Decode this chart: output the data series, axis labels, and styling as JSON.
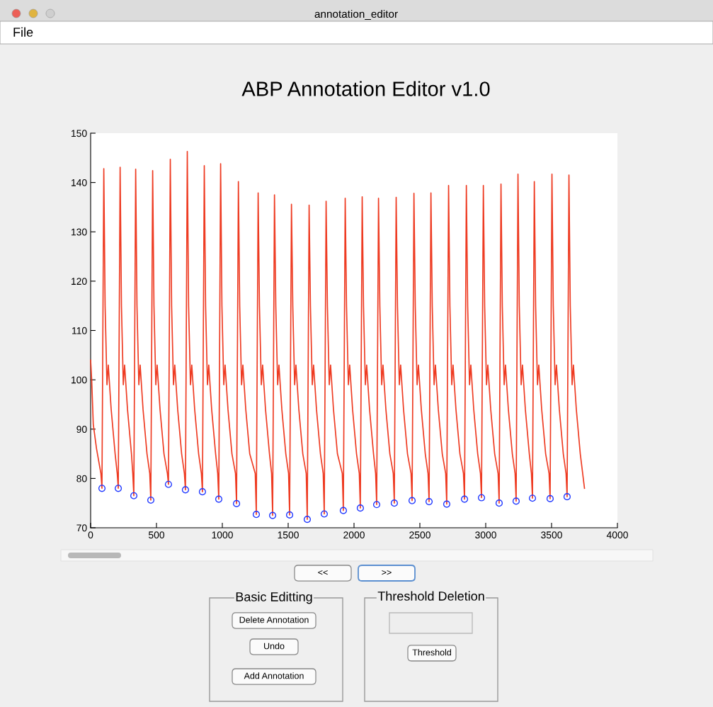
{
  "chart_data": {
    "type": "line",
    "title": "ABP Annotation Editor v1.0",
    "xlim": [
      0,
      4000
    ],
    "xticks": [
      0,
      500,
      1000,
      1500,
      2000,
      2500,
      3000,
      3500,
      4000
    ],
    "ylim": [
      70,
      150
    ],
    "yticks": [
      70,
      80,
      90,
      100,
      110,
      120,
      130,
      140,
      150
    ],
    "series": [
      {
        "color": "#ee3b22",
        "x": [
          0,
          8,
          20,
          45,
          78,
          86,
          100,
          110,
          124,
          134,
          156,
          186,
          202,
          210,
          224,
          234,
          248,
          258,
          280,
          310,
          320,
          328,
          342,
          352,
          366,
          376,
          398,
          428,
          449,
          457,
          471,
          481,
          495,
          505,
          527,
          557,
          583,
          591,
          605,
          615,
          629,
          639,
          661,
          691,
          712,
          720,
          734,
          744,
          758,
          768,
          790,
          820,
          841,
          849,
          863,
          873,
          887,
          897,
          919,
          949,
          965,
          973,
          987,
          997,
          1011,
          1021,
          1043,
          1073,
          1100,
          1108,
          1122,
          1132,
          1146,
          1156,
          1178,
          1208,
          1250,
          1258,
          1272,
          1282,
          1296,
          1306,
          1328,
          1358,
          1374,
          1382,
          1396,
          1406,
          1420,
          1430,
          1452,
          1482,
          1503,
          1511,
          1525,
          1535,
          1549,
          1559,
          1581,
          1611,
          1637,
          1645,
          1659,
          1669,
          1683,
          1693,
          1715,
          1745,
          1766,
          1774,
          1788,
          1798,
          1812,
          1822,
          1844,
          1874,
          1911,
          1919,
          1933,
          1943,
          1957,
          1967,
          1989,
          2019,
          2040,
          2048,
          2062,
          2072,
          2086,
          2096,
          2118,
          2148,
          2164,
          2172,
          2186,
          2196,
          2210,
          2220,
          2242,
          2272,
          2298,
          2306,
          2320,
          2330,
          2344,
          2354,
          2376,
          2406,
          2433,
          2441,
          2455,
          2465,
          2479,
          2489,
          2511,
          2541,
          2562,
          2570,
          2584,
          2594,
          2608,
          2618,
          2640,
          2670,
          2696,
          2704,
          2718,
          2728,
          2742,
          2752,
          2774,
          2804,
          2831,
          2839,
          2853,
          2863,
          2877,
          2887,
          2909,
          2939,
          2960,
          2968,
          2982,
          2992,
          3006,
          3016,
          3038,
          3068,
          3094,
          3102,
          3116,
          3126,
          3140,
          3150,
          3172,
          3202,
          3223,
          3231,
          3245,
          3255,
          3269,
          3279,
          3301,
          3331,
          3347,
          3355,
          3369,
          3379,
          3393,
          3403,
          3425,
          3455,
          3481,
          3489,
          3503,
          3513,
          3527,
          3537,
          3559,
          3589,
          3610,
          3618,
          3632,
          3642,
          3656,
          3666,
          3688,
          3718,
          3750
        ],
        "values": [
          104,
          100,
          91,
          86,
          81,
          78,
          142.8,
          115,
          99,
          103,
          94,
          85,
          81,
          78,
          143.1,
          115,
          99,
          103,
          94,
          85,
          81,
          76.5,
          142.7,
          115,
          99,
          103,
          94,
          85,
          81,
          75.6,
          142.4,
          115,
          99,
          103,
          94,
          85,
          81,
          78.8,
          144.7,
          115,
          99,
          103,
          94,
          85,
          81,
          77.7,
          146.3,
          115,
          99,
          103,
          94,
          85,
          81,
          77.3,
          143.4,
          115,
          99,
          103,
          94,
          85,
          81,
          75.8,
          143.8,
          115,
          99,
          103,
          94,
          85,
          81,
          74.9,
          140.2,
          115,
          99,
          103,
          94,
          85,
          81,
          72.7,
          137.9,
          115,
          99,
          103,
          94,
          85,
          81,
          72.5,
          137.5,
          115,
          99,
          103,
          94,
          85,
          81,
          72.6,
          135.6,
          115,
          99,
          103,
          94,
          85,
          81,
          71.7,
          135.4,
          115,
          99,
          103,
          94,
          85,
          81,
          72.8,
          136.2,
          115,
          99,
          103,
          94,
          85,
          81,
          73.5,
          136.8,
          115,
          99,
          103,
          94,
          85,
          81,
          74,
          137.1,
          115,
          99,
          103,
          94,
          85,
          81,
          74.7,
          136.8,
          115,
          99,
          103,
          94,
          85,
          81,
          75,
          137,
          115,
          99,
          103,
          94,
          85,
          81,
          75.5,
          137.8,
          115,
          99,
          103,
          94,
          85,
          81,
          75.3,
          137.9,
          115,
          99,
          103,
          94,
          85,
          81,
          74.8,
          139.4,
          115,
          99,
          103,
          94,
          85,
          81,
          75.8,
          139.4,
          115,
          99,
          103,
          94,
          85,
          81,
          76.1,
          139.4,
          115,
          99,
          103,
          94,
          85,
          81,
          75,
          139.7,
          115,
          99,
          103,
          94,
          85,
          81,
          75.4,
          141.7,
          115,
          99,
          103,
          94,
          85,
          81,
          76,
          140.2,
          115,
          99,
          103,
          94,
          85,
          81,
          75.9,
          141.7,
          115,
          99,
          103,
          94,
          85,
          81,
          76.3,
          141.5,
          115,
          99,
          103,
          94,
          85,
          78
        ]
      },
      {
        "type": "scatter",
        "color": "#2038ff",
        "marker": "circle",
        "x": [
          86,
          210,
          328,
          457,
          591,
          720,
          849,
          973,
          1108,
          1258,
          1382,
          1511,
          1645,
          1774,
          1919,
          2048,
          2172,
          2306,
          2441,
          2570,
          2704,
          2839,
          2968,
          3102,
          3231,
          3355,
          3489,
          3618
        ],
        "values": [
          78,
          78,
          76.5,
          75.6,
          78.8,
          77.7,
          77.3,
          75.8,
          74.9,
          72.7,
          72.5,
          72.6,
          71.7,
          72.8,
          73.5,
          74,
          74.7,
          75,
          75.5,
          75.3,
          74.8,
          75.8,
          76.1,
          75,
          75.4,
          76,
          75.9,
          76.3
        ]
      }
    ],
    "annotations": [
      "annotation_editor",
      "File",
      "<<",
      ">>",
      "Basic Editting",
      "Delete Annotation",
      "Undo",
      "Add Annotation",
      "Threshold Deletion",
      "Threshold"
    ]
  }
}
